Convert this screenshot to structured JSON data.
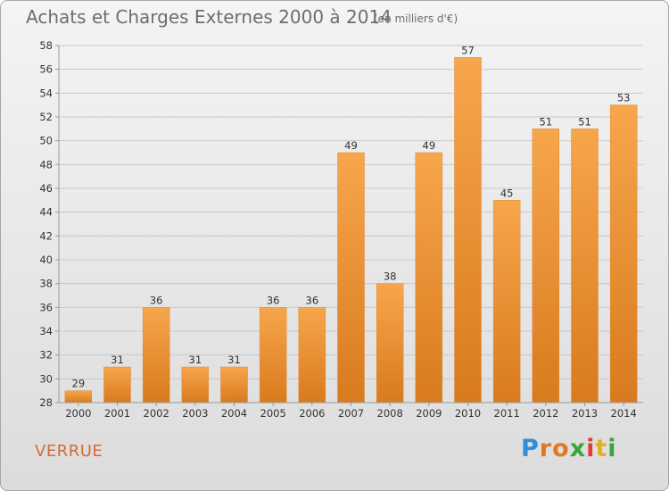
{
  "header": {
    "title": "Achats et Charges Externes 2000 à 2014",
    "subtitle": "(en milliers d'€)"
  },
  "footer": {
    "place": "VERRUE",
    "logo_text": "Proxiti"
  },
  "chart_data": {
    "type": "bar",
    "title": "Achats et Charges Externes 2000 à 2014",
    "subtitle": "(en milliers d'€)",
    "categories": [
      "2000",
      "2001",
      "2002",
      "2003",
      "2004",
      "2005",
      "2006",
      "2007",
      "2008",
      "2009",
      "2010",
      "2011",
      "2012",
      "2013",
      "2014"
    ],
    "values": [
      29,
      31,
      36,
      31,
      31,
      36,
      36,
      49,
      38,
      49,
      57,
      45,
      51,
      51,
      53
    ],
    "ylim": [
      28,
      58
    ],
    "yticks": [
      28,
      30,
      32,
      34,
      36,
      38,
      40,
      42,
      44,
      46,
      48,
      50,
      52,
      54,
      56,
      58
    ],
    "grid": true,
    "legend": "none",
    "colors": {
      "bar_top": "#f7a64c",
      "bar_bottom": "#d97a1e",
      "grid": "#c8c8c8"
    }
  }
}
